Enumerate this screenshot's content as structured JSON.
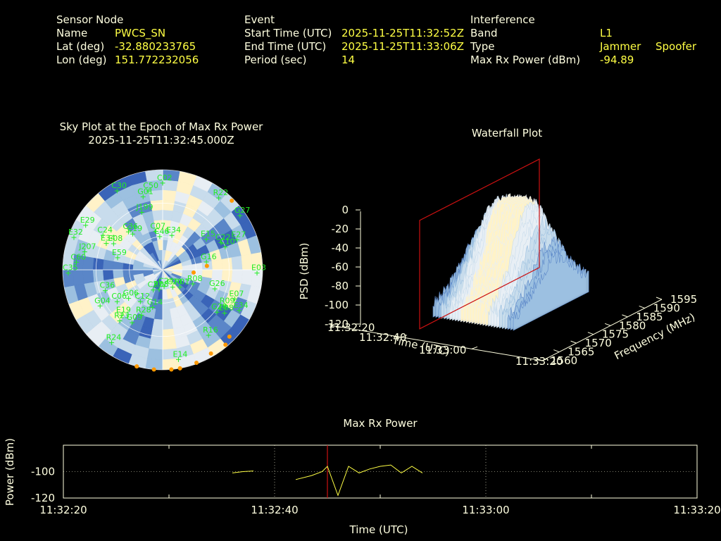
{
  "header": {
    "sensor": {
      "section": "Sensor Node",
      "name_label": "Name",
      "name": "PWCS_SN",
      "lat_label": "Lat (deg)",
      "lat": "-32.880233765",
      "lon_label": "Lon (deg)",
      "lon": "151.772232056"
    },
    "event": {
      "section": "Event",
      "start_label": "Start Time (UTC)",
      "start": "2025-11-25T11:32:52Z",
      "end_label": "End Time (UTC)",
      "end": "2025-11-25T11:33:06Z",
      "period_label": "Period (sec)",
      "period": "14"
    },
    "interference": {
      "section": "Interference",
      "band_label": "Band",
      "band": "L1",
      "type_label": "Type",
      "type_jammer": "Jammer",
      "type_spoofer": "Spoofer",
      "maxrx_label": "Max Rx Power (dBm)",
      "maxrx": "-94.89"
    }
  },
  "colors": {
    "text": "#ffffe0",
    "value": "#ffff44",
    "sat_label": "#22ee22",
    "orange": "#ff9900",
    "marker": "#cc1111",
    "trace": "#ffff44",
    "sky_light": "#fff2c8",
    "sky_mid": "#9cc0e0",
    "sky_dark": "#3a64b8"
  },
  "chart_data": [
    {
      "type": "scatter",
      "title": "Sky Plot at the Epoch of Max Rx Power",
      "subtitle": "2025-11-25T11:32:45.000Z",
      "satellites": [
        {
          "id": "C02",
          "az": 0,
          "el": 12
        },
        {
          "id": "J199",
          "az": 340,
          "el": 35
        },
        {
          "id": "G01",
          "az": 345,
          "el": 22
        },
        {
          "id": "C50",
          "az": 350,
          "el": 18
        },
        {
          "id": "C30",
          "az": 330,
          "el": 8
        },
        {
          "id": "R22",
          "az": 38,
          "el": 8
        },
        {
          "id": "G27",
          "az": 55,
          "el": 5
        },
        {
          "id": "E29",
          "az": 300,
          "el": 10
        },
        {
          "id": "E32",
          "az": 290,
          "el": 5
        },
        {
          "id": "C24",
          "az": 300,
          "el": 28
        },
        {
          "id": "E34",
          "az": 295,
          "el": 34
        },
        {
          "id": "E08",
          "az": 298,
          "el": 40
        },
        {
          "id": "C19",
          "az": 320,
          "el": 48
        },
        {
          "id": "C36",
          "az": 318,
          "el": 44
        },
        {
          "id": "C07",
          "az": 350,
          "el": 55
        },
        {
          "id": "C46",
          "az": 355,
          "el": 60
        },
        {
          "id": "E34",
          "az": 15,
          "el": 58
        },
        {
          "id": "E15",
          "az": 55,
          "el": 42
        },
        {
          "id": "C22",
          "az": 65,
          "el": 32
        },
        {
          "id": "E27",
          "az": 68,
          "el": 18
        },
        {
          "id": "C10",
          "az": 70,
          "el": 30
        },
        {
          "id": "J207",
          "az": 283,
          "el": 18
        },
        {
          "id": "E59",
          "az": 285,
          "el": 48
        },
        {
          "id": "C60",
          "az": 275,
          "el": 12
        },
        {
          "id": "C35",
          "az": 268,
          "el": 5
        },
        {
          "id": "E03",
          "az": 92,
          "el": 5
        },
        {
          "id": "G16",
          "az": 80,
          "el": 50
        },
        {
          "id": "C27",
          "az": 205,
          "el": 70
        },
        {
          "id": "R08",
          "az": 190,
          "el": 72
        },
        {
          "id": "C24",
          "az": 175,
          "el": 75
        },
        {
          "id": "C20",
          "az": 150,
          "el": 72
        },
        {
          "id": "R01",
          "az": 135,
          "el": 68
        },
        {
          "id": "R08",
          "az": 115,
          "el": 60
        },
        {
          "id": "G06",
          "az": 230,
          "el": 50
        },
        {
          "id": "C12",
          "az": 215,
          "el": 55
        },
        {
          "id": "G14",
          "az": 195,
          "el": 55
        },
        {
          "id": "G04",
          "az": 240,
          "el": 25
        },
        {
          "id": "C36",
          "az": 250,
          "el": 35
        },
        {
          "id": "C06",
          "az": 235,
          "el": 40
        },
        {
          "id": "E19",
          "az": 222,
          "el": 35
        },
        {
          "id": "R28",
          "az": 205,
          "el": 45
        },
        {
          "id": "R23",
          "az": 220,
          "el": 30
        },
        {
          "id": "G09",
          "az": 210,
          "el": 35
        },
        {
          "id": "G26",
          "az": 110,
          "el": 40
        },
        {
          "id": "R09",
          "az": 120,
          "el": 25
        },
        {
          "id": "E07",
          "az": 112,
          "el": 20
        },
        {
          "id": "E08",
          "az": 125,
          "el": 22
        },
        {
          "id": "E34",
          "az": 118,
          "el": 12
        },
        {
          "id": "G28",
          "az": 128,
          "el": 28
        },
        {
          "id": "R16",
          "az": 145,
          "el": 18
        },
        {
          "id": "E14",
          "az": 170,
          "el": 8
        },
        {
          "id": "R24",
          "az": 215,
          "el": 10
        }
      ],
      "interference_points": [
        {
          "az": 85,
          "el": 50
        },
        {
          "az": 95,
          "el": 62
        },
        {
          "az": 150,
          "el": 3
        },
        {
          "az": 160,
          "el": 1
        },
        {
          "az": 170,
          "el": 0
        },
        {
          "az": 175,
          "el": 0
        },
        {
          "az": 185,
          "el": 0
        },
        {
          "az": 140,
          "el": 2
        },
        {
          "az": 135,
          "el": 5
        },
        {
          "az": 45,
          "el": 2
        },
        {
          "az": 195,
          "el": 0
        }
      ]
    },
    {
      "type": "area",
      "title": "Waterfall Plot",
      "xlabel": "Time (UTC)",
      "ylabel": "Frequency (MHz)",
      "zlabel": "PSD (dBm)",
      "x_ticks": [
        "11:32:20",
        "11:32:40",
        "11:33:00",
        "11:33:20"
      ],
      "y_ticks": [
        "1560",
        "1565",
        "1570",
        "1575",
        "1580",
        "1585",
        "1590",
        "1595"
      ],
      "z_ticks": [
        "0",
        "-20",
        "-40",
        "-60",
        "-80",
        "-100",
        "-120"
      ],
      "marker_time": "11:32:45"
    },
    {
      "type": "line",
      "title": "Max Rx Power",
      "xlabel": "Time (UTC)",
      "ylabel": "Power (dBm)",
      "x_ticks": [
        "11:32:20",
        "11:32:40",
        "11:33:00",
        "11:33:20"
      ],
      "y_ticks": [
        "-100",
        "-120"
      ],
      "xlim": [
        0,
        60
      ],
      "ylim": [
        -120,
        -80
      ],
      "marker_x": 25,
      "series": [
        {
          "segment": [
            [
              16,
              -101
            ],
            [
              17,
              -100
            ],
            [
              18,
              -99.5
            ]
          ]
        },
        {
          "segment": [
            [
              22,
              -106
            ],
            [
              23.5,
              -103
            ],
            [
              24.5,
              -100
            ],
            [
              25,
              -96
            ],
            [
              26,
              -118
            ],
            [
              27,
              -96
            ],
            [
              28,
              -101
            ],
            [
              29,
              -98
            ],
            [
              30,
              -96
            ],
            [
              31,
              -95
            ],
            [
              32,
              -101
            ],
            [
              33,
              -96
            ],
            [
              34,
              -101
            ]
          ]
        }
      ]
    }
  ]
}
